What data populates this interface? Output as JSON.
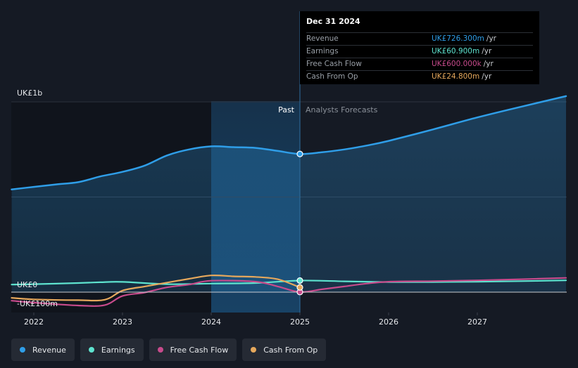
{
  "chart_data": {
    "type": "line",
    "y_axis": {
      "top_label": "UK£1b",
      "zero_label": "UK£0",
      "neg_label": "-UK£100m"
    },
    "x_ticks": [
      "2022",
      "2023",
      "2024",
      "2025",
      "2026",
      "2027"
    ],
    "region_labels": {
      "past": "Past",
      "forecast": "Analysts Forecasts"
    },
    "divider_date": 2025.0,
    "highlight_start": 2024.0,
    "series": [
      {
        "name": "Revenue",
        "color": "#2f9ee8",
        "points": [
          [
            2021.75,
            540
          ],
          [
            2022.0,
            553
          ],
          [
            2022.25,
            566
          ],
          [
            2022.5,
            578
          ],
          [
            2022.75,
            608
          ],
          [
            2023.0,
            632
          ],
          [
            2023.25,
            665
          ],
          [
            2023.5,
            718
          ],
          [
            2023.75,
            750
          ],
          [
            2024.0,
            766
          ],
          [
            2024.25,
            762
          ],
          [
            2024.5,
            758
          ],
          [
            2024.75,
            742
          ],
          [
            2025.0,
            726
          ],
          [
            2025.25,
            735
          ],
          [
            2025.5,
            750
          ],
          [
            2025.75,
            770
          ],
          [
            2026.0,
            795
          ],
          [
            2026.5,
            855
          ],
          [
            2027.0,
            918
          ],
          [
            2027.5,
            975
          ],
          [
            2028.0,
            1030
          ]
        ]
      },
      {
        "name": "Earnings",
        "color": "#5ee3cf",
        "points": [
          [
            2021.75,
            40
          ],
          [
            2022.0,
            42
          ],
          [
            2022.5,
            48
          ],
          [
            2022.75,
            52
          ],
          [
            2023.0,
            54
          ],
          [
            2023.5,
            42
          ],
          [
            2024.0,
            45
          ],
          [
            2024.5,
            48
          ],
          [
            2025.0,
            60.9
          ],
          [
            2025.5,
            57
          ],
          [
            2026.0,
            53
          ],
          [
            2026.5,
            53
          ],
          [
            2027.0,
            55
          ],
          [
            2027.5,
            58
          ],
          [
            2028.0,
            62
          ]
        ]
      },
      {
        "name": "Free Cash Flow",
        "color": "#c84b8c",
        "points": [
          [
            2021.75,
            -45
          ],
          [
            2022.0,
            -55
          ],
          [
            2022.5,
            -70
          ],
          [
            2022.8,
            -68
          ],
          [
            2023.0,
            -20
          ],
          [
            2023.25,
            -2
          ],
          [
            2023.5,
            25
          ],
          [
            2023.75,
            40
          ],
          [
            2024.0,
            60
          ],
          [
            2024.5,
            55
          ],
          [
            2024.75,
            30
          ],
          [
            2025.0,
            0.6
          ],
          [
            2025.25,
            15
          ],
          [
            2025.5,
            30
          ],
          [
            2025.75,
            45
          ],
          [
            2026.0,
            55
          ],
          [
            2026.5,
            58
          ],
          [
            2027.0,
            62
          ],
          [
            2027.5,
            68
          ],
          [
            2028.0,
            75
          ]
        ]
      },
      {
        "name": "Cash From Op",
        "color": "#e6a85c",
        "points": [
          [
            2021.75,
            -30
          ],
          [
            2022.0,
            -38
          ],
          [
            2022.5,
            -42
          ],
          [
            2022.8,
            -40
          ],
          [
            2023.0,
            8
          ],
          [
            2023.25,
            30
          ],
          [
            2023.5,
            50
          ],
          [
            2023.75,
            70
          ],
          [
            2024.0,
            88
          ],
          [
            2024.25,
            83
          ],
          [
            2024.5,
            80
          ],
          [
            2024.75,
            68
          ],
          [
            2025.0,
            24.8
          ]
        ]
      }
    ],
    "ylim": [
      -100,
      1030
    ]
  },
  "tooltip": {
    "date": "Dec 31 2024",
    "rows": [
      {
        "label": "Revenue",
        "value": "UK£726.300m",
        "unit": "/yr",
        "color": "#2f9ee8"
      },
      {
        "label": "Earnings",
        "value": "UK£60.900m",
        "unit": "/yr",
        "color": "#5ee3cf"
      },
      {
        "label": "Free Cash Flow",
        "value": "UK£600.000k",
        "unit": "/yr",
        "color": "#c84b8c"
      },
      {
        "label": "Cash From Op",
        "value": "UK£24.800m",
        "unit": "/yr",
        "color": "#e6a85c"
      }
    ]
  },
  "legend": [
    {
      "label": "Revenue",
      "color": "#2f9ee8"
    },
    {
      "label": "Earnings",
      "color": "#5ee3cf"
    },
    {
      "label": "Free Cash Flow",
      "color": "#c84b8c"
    },
    {
      "label": "Cash From Op",
      "color": "#e6a85c"
    }
  ]
}
